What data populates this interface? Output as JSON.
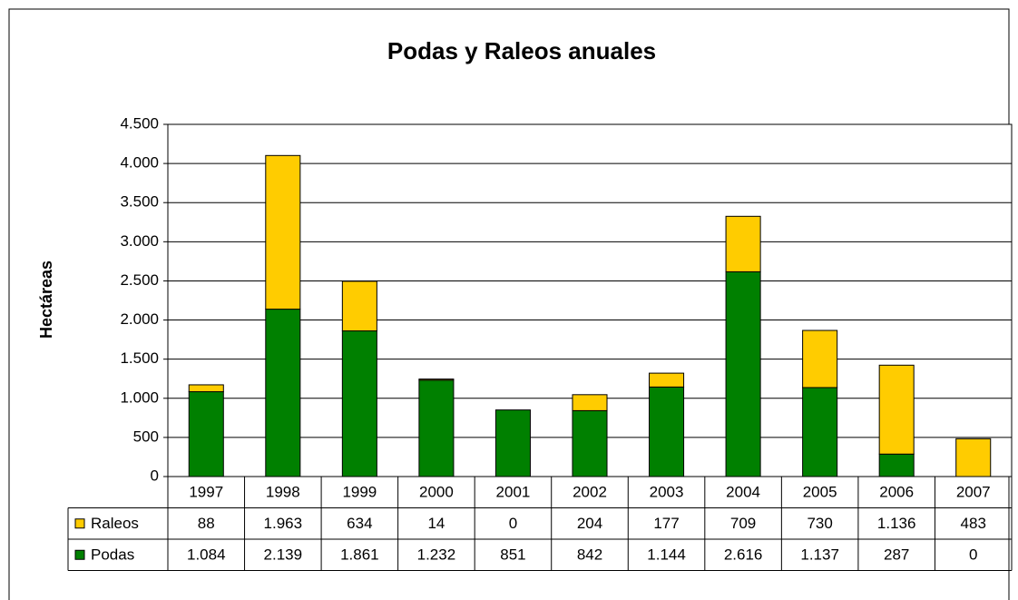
{
  "chart_data": {
    "type": "stacked_bar",
    "title": "Podas y Raleos anuales",
    "y_label": "Hectáreas",
    "categories": [
      "1997",
      "1998",
      "1999",
      "2000",
      "2001",
      "2002",
      "2003",
      "2004",
      "2005",
      "2006",
      "2007"
    ],
    "series": [
      {
        "name": "Raleos",
        "color": "#ffcc00",
        "values": [
          88,
          1963,
          634,
          14,
          0,
          204,
          177,
          709,
          730,
          1136,
          483
        ],
        "value_labels": [
          "88",
          "1.963",
          "634",
          "14",
          "0",
          "204",
          "177",
          "709",
          "730",
          "1.136",
          "483"
        ]
      },
      {
        "name": "Podas",
        "color": "#008000",
        "values": [
          1084,
          2139,
          1861,
          1232,
          851,
          842,
          1144,
          2616,
          1137,
          287,
          0
        ],
        "value_labels": [
          "1.084",
          "2.139",
          "1.861",
          "1.232",
          "851",
          "842",
          "1.144",
          "2.616",
          "1.137",
          "287",
          "0"
        ]
      }
    ],
    "ylim": [
      0,
      4500
    ],
    "yticks": [
      0,
      500,
      {
        "value": 1000,
        "label": "1.000"
      },
      {
        "value": 1500,
        "label": "1.500"
      },
      {
        "value": 2000,
        "label": "2.000"
      },
      {
        "value": 2500,
        "label": "2.500"
      },
      {
        "value": 3000,
        "label": "3.000"
      },
      {
        "value": 3500,
        "label": "3.500"
      },
      {
        "value": 4000,
        "label": "4.000"
      },
      {
        "value": 4500,
        "label": "4.500"
      }
    ],
    "grid": true
  }
}
